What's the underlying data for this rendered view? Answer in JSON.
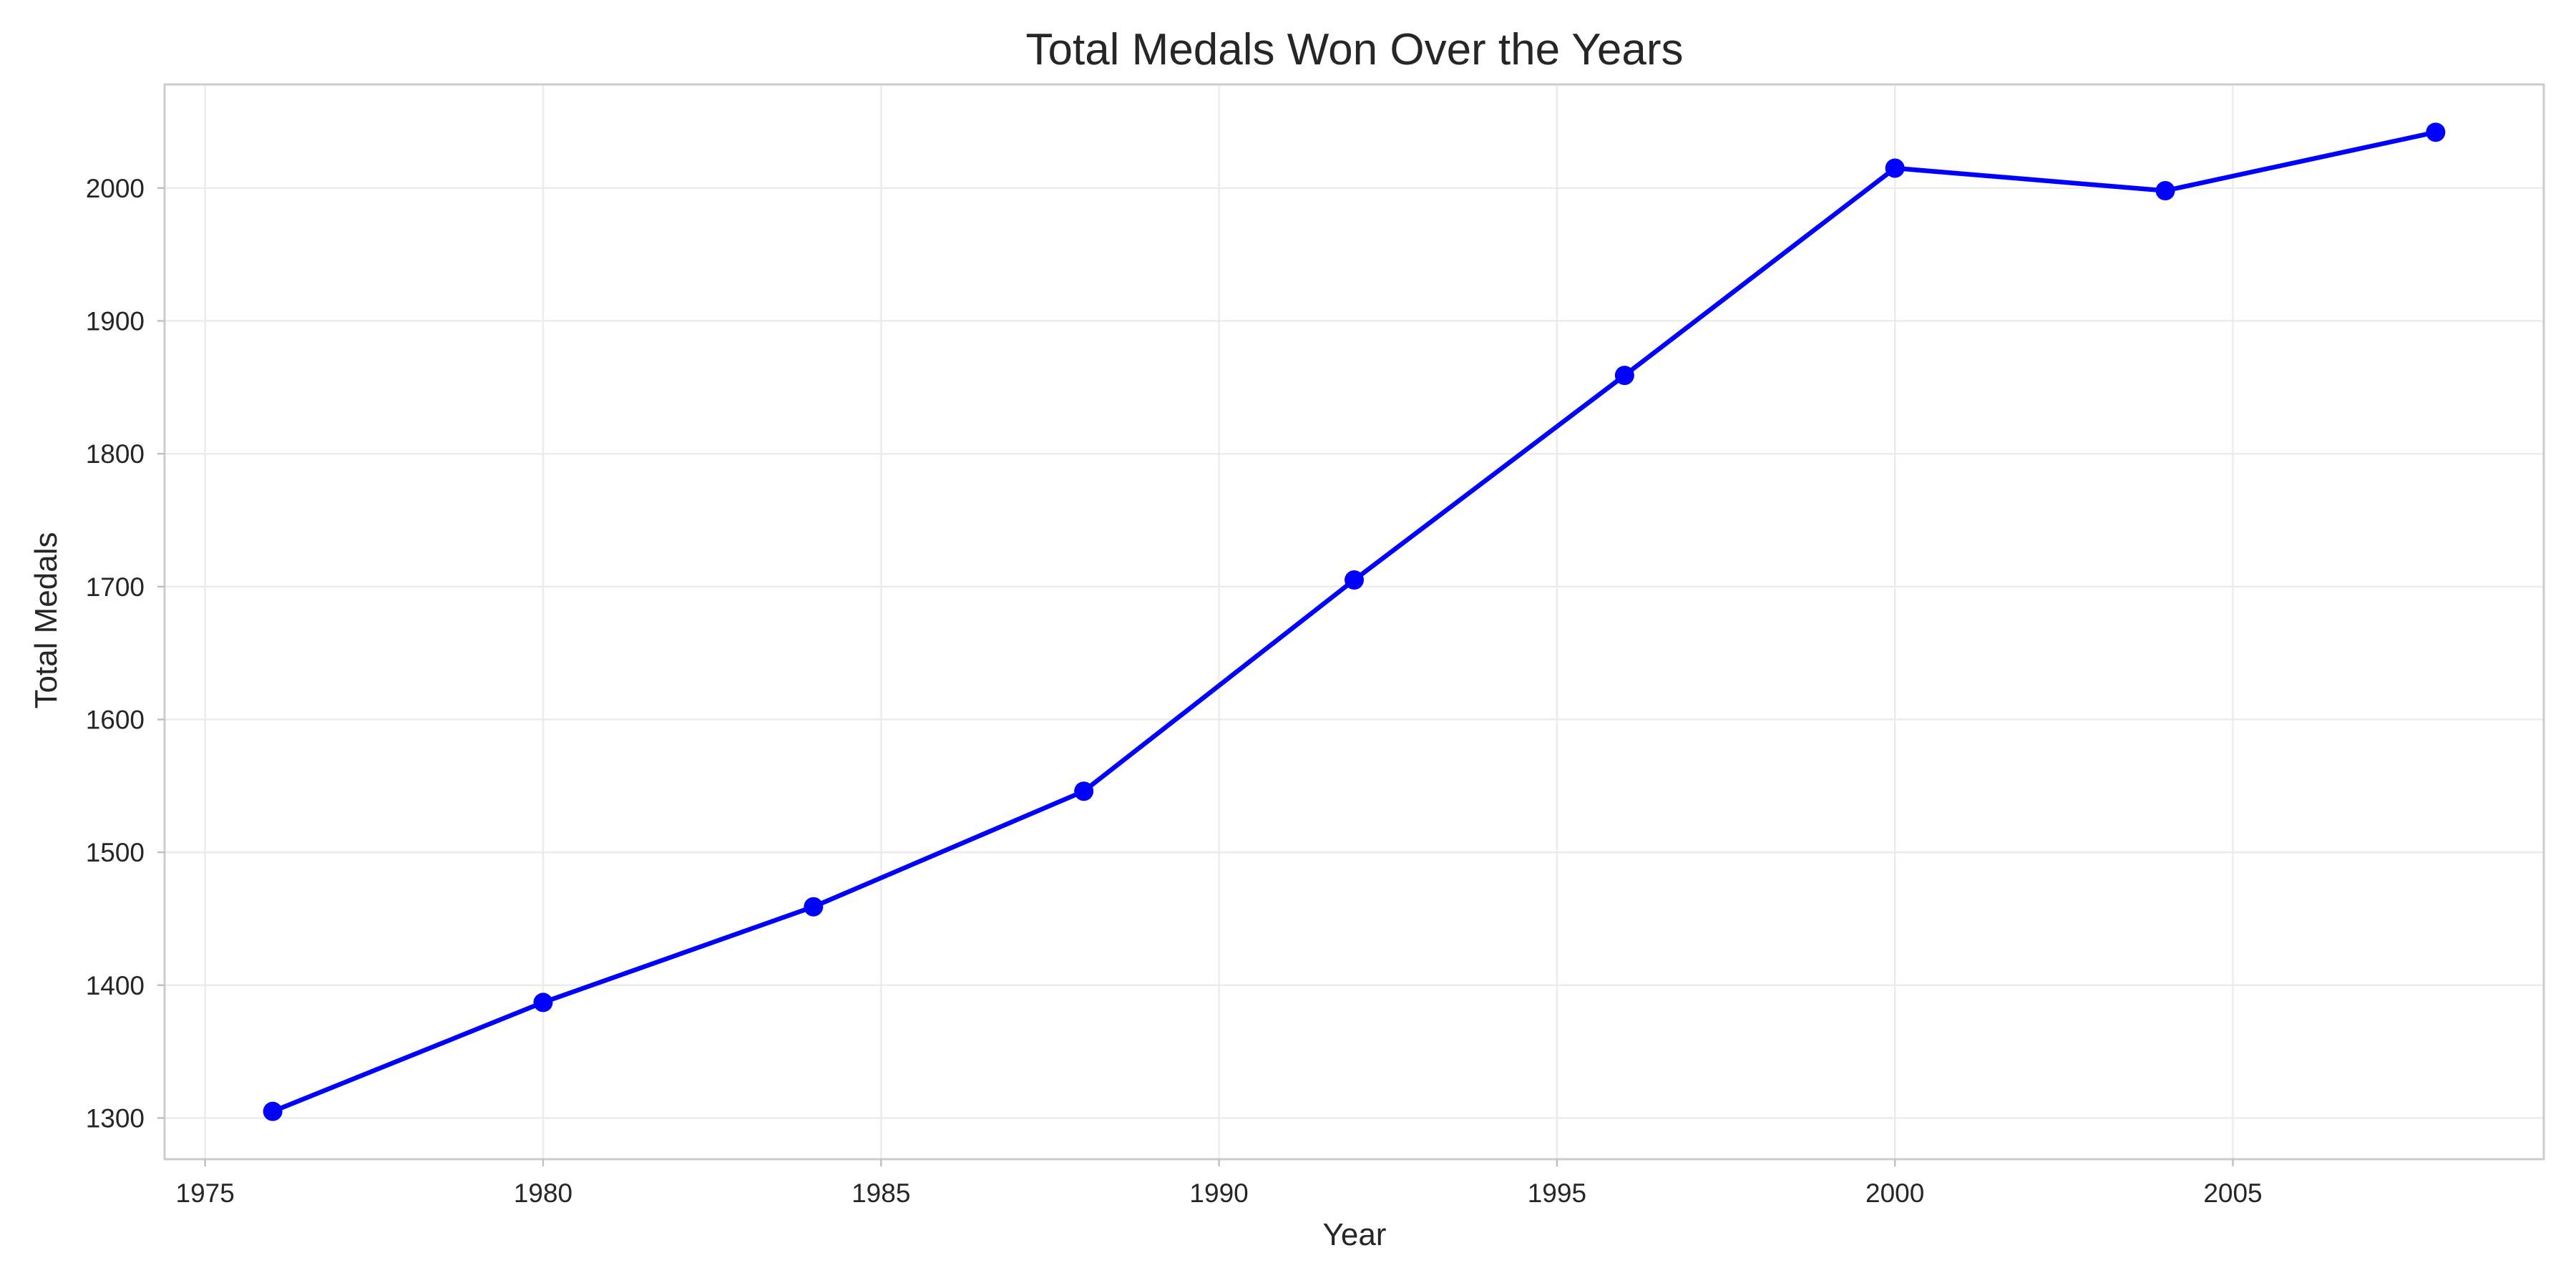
{
  "chart_data": {
    "type": "line",
    "title": "Total Medals Won Over the Years",
    "xlabel": "Year",
    "ylabel": "Total Medals",
    "x": [
      1976,
      1980,
      1984,
      1988,
      1992,
      1996,
      2000,
      2004,
      2008
    ],
    "series": [
      {
        "values": [
          1305,
          1387,
          1459,
          1546,
          1705,
          1859,
          2015,
          1998,
          2042
        ],
        "color": "#0000ff",
        "marker": "circle"
      }
    ],
    "xlim": [
      1974.4,
      2009.6
    ],
    "ylim": [
      1269,
      2078
    ],
    "x_ticks": [
      1975,
      1980,
      1985,
      1990,
      1995,
      2000,
      2005
    ],
    "y_ticks": [
      1300,
      1400,
      1500,
      1600,
      1700,
      1800,
      1900,
      2000
    ],
    "grid": true,
    "legend": "none"
  }
}
